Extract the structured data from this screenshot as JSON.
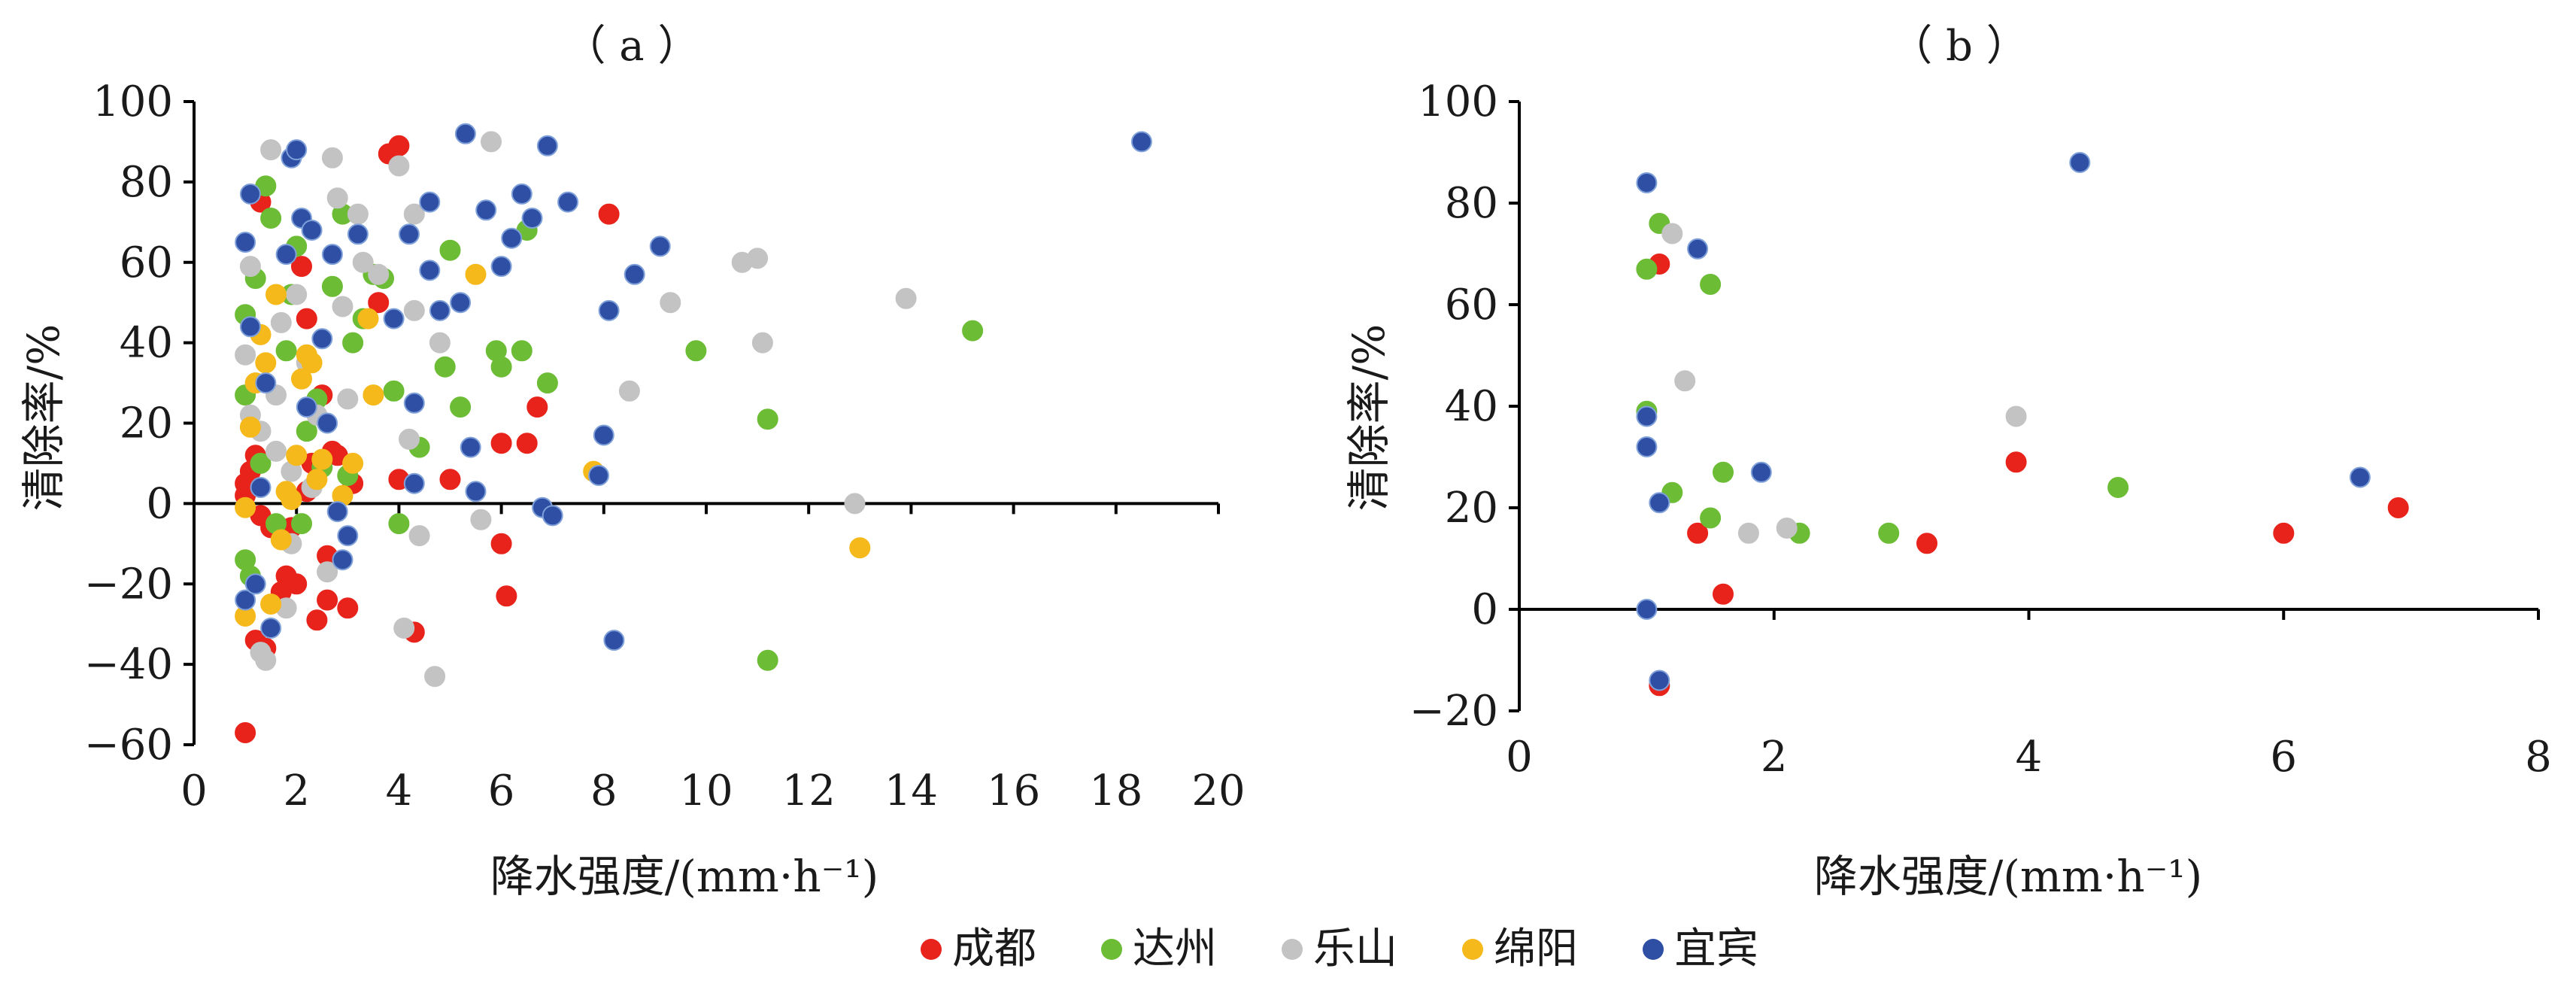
{
  "legend": [
    {
      "name": "成都",
      "color": "#e8231b"
    },
    {
      "name": "达州",
      "color": "#6cbd35"
    },
    {
      "name": "乐山",
      "color": "#c3c3c3"
    },
    {
      "name": "绵阳",
      "color": "#f5b91b"
    },
    {
      "name": "宜宾",
      "color": "#2e4fa4"
    }
  ],
  "chart_data": [
    {
      "type": "scatter",
      "panel": "(a)",
      "title": "（ a ）",
      "xlabel": "降水强度/(mm·h⁻¹)",
      "ylabel": "清除率/%",
      "xlim": [
        0,
        20
      ],
      "ylim": [
        -60,
        100
      ],
      "xticks": [
        0,
        2,
        4,
        6,
        8,
        10,
        12,
        14,
        16,
        18,
        20
      ],
      "yticks": [
        -60,
        -40,
        -20,
        0,
        20,
        40,
        60,
        80,
        100
      ],
      "ytick_labels": [
        "−60",
        "−40",
        "−20",
        "0",
        "20",
        "40",
        "60",
        "80",
        "100"
      ],
      "grid": false,
      "series": [
        {
          "name": "成都",
          "color": "#e8231b",
          "points": [
            [
              1.0,
              -57
            ],
            [
              1.2,
              -34
            ],
            [
              1.4,
              -36
            ],
            [
              1.3,
              75
            ],
            [
              1.5,
              -6
            ],
            [
              1.0,
              5
            ],
            [
              1.1,
              8
            ],
            [
              1.2,
              12
            ],
            [
              1.0,
              2
            ],
            [
              1.3,
              -3
            ],
            [
              1.8,
              -18
            ],
            [
              2.0,
              -20
            ],
            [
              2.2,
              46
            ],
            [
              2.3,
              10
            ],
            [
              2.1,
              59
            ],
            [
              2.5,
              27
            ],
            [
              2.6,
              -13
            ],
            [
              2.7,
              13
            ],
            [
              2.8,
              12
            ],
            [
              2.4,
              -29
            ],
            [
              2.6,
              -24
            ],
            [
              3.0,
              -26
            ],
            [
              3.6,
              50
            ],
            [
              3.8,
              87
            ],
            [
              4.0,
              89
            ],
            [
              4.0,
              6
            ],
            [
              4.3,
              -32
            ],
            [
              5.0,
              6
            ],
            [
              6.0,
              15
            ],
            [
              6.0,
              -10
            ],
            [
              6.1,
              -23
            ],
            [
              6.5,
              15
            ],
            [
              6.7,
              24
            ],
            [
              8.1,
              72
            ],
            [
              1.7,
              -22
            ],
            [
              1.9,
              -6
            ],
            [
              2.2,
              3
            ],
            [
              3.1,
              5
            ]
          ]
        },
        {
          "name": "达州",
          "color": "#6cbd35",
          "points": [
            [
              1.0,
              -14
            ],
            [
              1.1,
              -18
            ],
            [
              1.0,
              27
            ],
            [
              1.2,
              56
            ],
            [
              1.4,
              79
            ],
            [
              1.5,
              71
            ],
            [
              1.6,
              -5
            ],
            [
              1.8,
              38
            ],
            [
              1.9,
              52
            ],
            [
              2.0,
              64
            ],
            [
              2.2,
              18
            ],
            [
              2.4,
              26
            ],
            [
              2.7,
              54
            ],
            [
              2.9,
              72
            ],
            [
              3.0,
              7
            ],
            [
              3.1,
              40
            ],
            [
              3.3,
              46
            ],
            [
              3.5,
              57
            ],
            [
              3.7,
              56
            ],
            [
              3.9,
              28
            ],
            [
              4.0,
              -5
            ],
            [
              4.4,
              14
            ],
            [
              4.9,
              34
            ],
            [
              5.0,
              63
            ],
            [
              5.2,
              24
            ],
            [
              5.9,
              38
            ],
            [
              6.0,
              34
            ],
            [
              6.4,
              38
            ],
            [
              6.5,
              68
            ],
            [
              6.9,
              30
            ],
            [
              9.8,
              38
            ],
            [
              11.2,
              21
            ],
            [
              11.2,
              -39
            ],
            [
              15.2,
              43
            ],
            [
              1.0,
              47
            ],
            [
              1.3,
              10
            ],
            [
              2.1,
              -5
            ],
            [
              2.5,
              9
            ]
          ]
        },
        {
          "name": "乐山",
          "color": "#c3c3c3",
          "points": [
            [
              1.0,
              37
            ],
            [
              1.1,
              59
            ],
            [
              1.2,
              30
            ],
            [
              1.3,
              -37
            ],
            [
              1.4,
              -39
            ],
            [
              1.5,
              88
            ],
            [
              1.6,
              13
            ],
            [
              1.7,
              45
            ],
            [
              1.8,
              -26
            ],
            [
              1.9,
              -10
            ],
            [
              2.0,
              52
            ],
            [
              2.2,
              35
            ],
            [
              2.4,
              22
            ],
            [
              2.6,
              -17
            ],
            [
              2.7,
              86
            ],
            [
              2.8,
              76
            ],
            [
              2.9,
              49
            ],
            [
              3.0,
              26
            ],
            [
              3.2,
              72
            ],
            [
              3.3,
              60
            ],
            [
              3.6,
              57
            ],
            [
              4.0,
              84
            ],
            [
              4.1,
              -31
            ],
            [
              4.2,
              16
            ],
            [
              4.3,
              48
            ],
            [
              4.3,
              72
            ],
            [
              4.4,
              -8
            ],
            [
              4.7,
              -43
            ],
            [
              4.8,
              40
            ],
            [
              5.6,
              -4
            ],
            [
              5.8,
              90
            ],
            [
              8.5,
              28
            ],
            [
              9.3,
              50
            ],
            [
              10.7,
              60
            ],
            [
              11.0,
              61
            ],
            [
              11.1,
              40
            ],
            [
              12.9,
              0
            ],
            [
              13.9,
              51
            ],
            [
              1.1,
              22
            ],
            [
              1.3,
              18
            ],
            [
              1.6,
              27
            ],
            [
              1.9,
              8
            ],
            [
              2.3,
              4
            ]
          ]
        },
        {
          "name": "绵阳",
          "color": "#f5b91b",
          "points": [
            [
              1.0,
              -28
            ],
            [
              1.1,
              19
            ],
            [
              1.2,
              30
            ],
            [
              1.3,
              42
            ],
            [
              1.4,
              35
            ],
            [
              1.5,
              -25
            ],
            [
              1.6,
              52
            ],
            [
              1.7,
              -9
            ],
            [
              1.8,
              3
            ],
            [
              2.0,
              12
            ],
            [
              2.1,
              31
            ],
            [
              2.2,
              37
            ],
            [
              2.4,
              6
            ],
            [
              2.5,
              11
            ],
            [
              2.9,
              2
            ],
            [
              3.1,
              10
            ],
            [
              3.4,
              46
            ],
            [
              3.5,
              27
            ],
            [
              5.5,
              57
            ],
            [
              7.8,
              8
            ],
            [
              13.0,
              -11
            ],
            [
              1.0,
              -1
            ],
            [
              1.9,
              1
            ],
            [
              2.3,
              35
            ]
          ]
        },
        {
          "name": "宜宾",
          "color": "#2e4fa4",
          "points": [
            [
              1.0,
              65
            ],
            [
              1.1,
              77
            ],
            [
              1.0,
              -24
            ],
            [
              1.2,
              -20
            ],
            [
              1.3,
              4
            ],
            [
              1.5,
              -31
            ],
            [
              1.8,
              62
            ],
            [
              1.9,
              86
            ],
            [
              2.0,
              88
            ],
            [
              2.1,
              71
            ],
            [
              2.2,
              24
            ],
            [
              2.3,
              68
            ],
            [
              2.5,
              41
            ],
            [
              2.7,
              62
            ],
            [
              2.8,
              -2
            ],
            [
              2.9,
              -14
            ],
            [
              3.0,
              -8
            ],
            [
              3.2,
              67
            ],
            [
              3.9,
              46
            ],
            [
              4.2,
              67
            ],
            [
              4.3,
              5
            ],
            [
              4.3,
              25
            ],
            [
              4.6,
              75
            ],
            [
              4.6,
              58
            ],
            [
              4.8,
              48
            ],
            [
              5.2,
              50
            ],
            [
              5.3,
              92
            ],
            [
              5.4,
              14
            ],
            [
              5.5,
              3
            ],
            [
              5.7,
              73
            ],
            [
              6.0,
              59
            ],
            [
              6.2,
              66
            ],
            [
              6.4,
              77
            ],
            [
              6.6,
              71
            ],
            [
              6.8,
              -1
            ],
            [
              6.9,
              89
            ],
            [
              7.0,
              -3
            ],
            [
              7.3,
              75
            ],
            [
              7.9,
              7
            ],
            [
              8.0,
              17
            ],
            [
              8.1,
              48
            ],
            [
              8.2,
              -34
            ],
            [
              8.6,
              57
            ],
            [
              9.1,
              64
            ],
            [
              18.5,
              90
            ],
            [
              1.1,
              44
            ],
            [
              1.4,
              30
            ],
            [
              2.6,
              20
            ]
          ]
        }
      ]
    },
    {
      "type": "scatter",
      "panel": "(b)",
      "title": "（ b ）",
      "xlabel": "降水强度/(mm·h⁻¹)",
      "ylabel": "清除率/%",
      "xlim": [
        0,
        8
      ],
      "ylim": [
        -20,
        100
      ],
      "xticks": [
        0,
        2,
        4,
        6,
        8
      ],
      "yticks": [
        -20,
        0,
        20,
        40,
        60,
        80,
        100
      ],
      "ytick_labels": [
        "−20",
        "0",
        "20",
        "40",
        "60",
        "80",
        "100"
      ],
      "grid": false,
      "series": [
        {
          "name": "成都",
          "color": "#e8231b",
          "points": [
            [
              1.1,
              68
            ],
            [
              1.1,
              -15
            ],
            [
              1.4,
              15
            ],
            [
              1.6,
              3
            ],
            [
              3.2,
              13
            ],
            [
              3.9,
              29
            ],
            [
              6.0,
              15
            ],
            [
              6.9,
              20
            ]
          ]
        },
        {
          "name": "达州",
          "color": "#6cbd35",
          "points": [
            [
              1.0,
              67
            ],
            [
              1.0,
              39
            ],
            [
              1.1,
              76
            ],
            [
              1.2,
              23
            ],
            [
              1.5,
              64
            ],
            [
              1.5,
              18
            ],
            [
              1.6,
              27
            ],
            [
              2.2,
              15
            ],
            [
              2.9,
              15
            ],
            [
              4.7,
              24
            ]
          ]
        },
        {
          "name": "乐山",
          "color": "#c3c3c3",
          "points": [
            [
              1.2,
              74
            ],
            [
              1.3,
              45
            ],
            [
              1.8,
              15
            ],
            [
              2.1,
              16
            ],
            [
              3.9,
              38
            ]
          ]
        },
        {
          "name": "绵阳",
          "color": "#f5b91b",
          "points": []
        },
        {
          "name": "宜宾",
          "color": "#2e4fa4",
          "points": [
            [
              1.0,
              84
            ],
            [
              1.0,
              38
            ],
            [
              1.0,
              32
            ],
            [
              1.0,
              0
            ],
            [
              1.1,
              21
            ],
            [
              1.1,
              -14
            ],
            [
              1.4,
              71
            ],
            [
              1.9,
              27
            ],
            [
              4.4,
              88
            ],
            [
              6.6,
              26
            ]
          ]
        }
      ]
    }
  ]
}
